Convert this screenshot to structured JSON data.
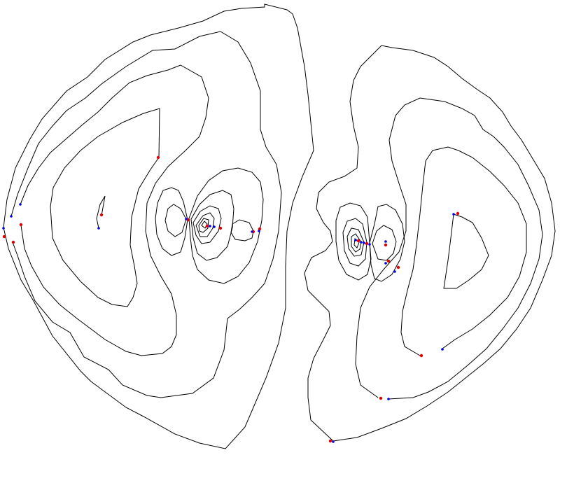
{
  "figure": {
    "type": "contour-plot",
    "background": "#ffffff",
    "line_color": "#000000",
    "marker_colors": {
      "red": "#e00000",
      "blue": "#0000e0"
    }
  }
}
